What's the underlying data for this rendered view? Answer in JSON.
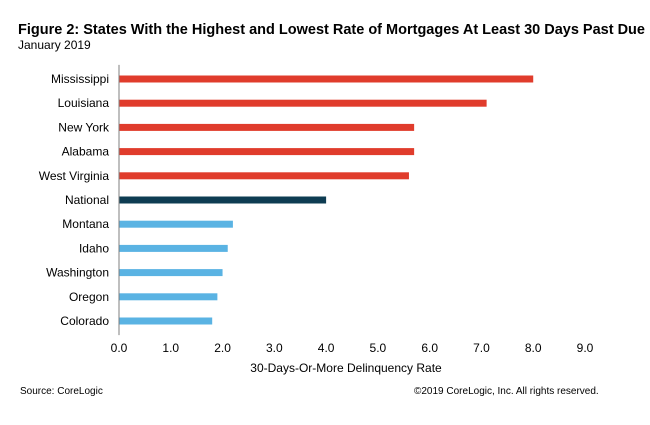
{
  "header": {
    "title": "Figure 2:  States With the Highest and Lowest Rate of Mortgages At Least 30 Days Past Due",
    "subtitle": "January 2019"
  },
  "footer": {
    "source": "Source: CoreLogic",
    "copyright": "©2019 CoreLogic, Inc.  All rights reserved."
  },
  "colors": {
    "high": "#e03c2c",
    "national": "#0e3c52",
    "low": "#5ab3e3"
  },
  "chart_data": {
    "type": "bar",
    "orientation": "horizontal",
    "title": "Figure 2:  States With the Highest and Lowest Rate of Mortgages At Least 30 Days Past Due",
    "subtitle": "January 2019",
    "xlabel": "30-Days-Or-More  Delinquency  Rate",
    "ylabel": "",
    "xlim": [
      0,
      9
    ],
    "xticks": [
      "0.0",
      "1.0",
      "2.0",
      "3.0",
      "4.0",
      "5.0",
      "6.0",
      "7.0",
      "8.0",
      "9.0"
    ],
    "grid": false,
    "categories": [
      "Mississippi",
      "Louisiana",
      "New York",
      "Alabama",
      "West Virginia",
      "National",
      "Montana",
      "Idaho",
      "Washington",
      "Oregon",
      "Colorado"
    ],
    "values": [
      8.0,
      7.1,
      5.7,
      5.7,
      5.6,
      4.0,
      2.2,
      2.1,
      2.0,
      1.9,
      1.8
    ],
    "groups": [
      "high",
      "high",
      "high",
      "high",
      "high",
      "national",
      "low",
      "low",
      "low",
      "low",
      "low"
    ]
  }
}
